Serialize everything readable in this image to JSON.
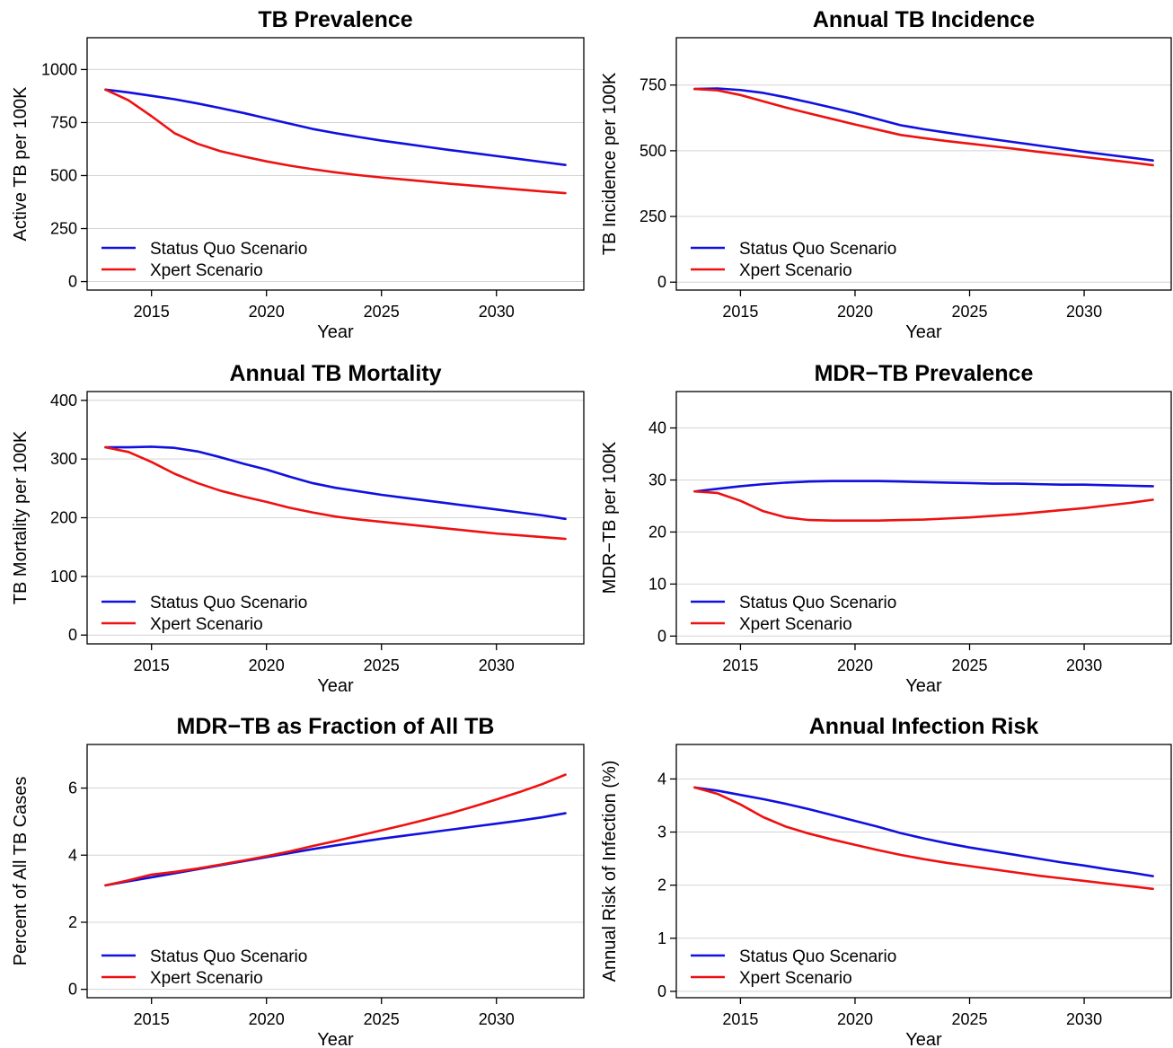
{
  "colors": {
    "status_quo": "#1010e0",
    "xpert": "#ee1111"
  },
  "chart_data": [
    {
      "type": "line",
      "title": "TB Prevalence",
      "xlabel": "Year",
      "ylabel": "Active TB per 100K",
      "xlim": [
        2012.2,
        2033.8
      ],
      "ylim": [
        -40,
        1150
      ],
      "xticks": [
        2015,
        2020,
        2025,
        2030
      ],
      "yticks": [
        0,
        250,
        500,
        750,
        1000
      ],
      "grid": "horizontal",
      "legend": "bottom-left",
      "series": [
        {
          "name": "Status Quo Scenario",
          "color": "#1010e0",
          "x": [
            2013,
            2014,
            2015,
            2016,
            2017,
            2018,
            2019,
            2020,
            2021,
            2022,
            2023,
            2024,
            2025,
            2026,
            2027,
            2028,
            2029,
            2030,
            2031,
            2032,
            2033
          ],
          "y": [
            905,
            892,
            876,
            860,
            840,
            818,
            795,
            770,
            745,
            720,
            700,
            682,
            665,
            650,
            635,
            620,
            606,
            592,
            578,
            564,
            550
          ]
        },
        {
          "name": "Xpert Scenario",
          "color": "#ee1111",
          "x": [
            2013,
            2014,
            2015,
            2016,
            2017,
            2018,
            2019,
            2020,
            2021,
            2022,
            2023,
            2024,
            2025,
            2026,
            2027,
            2028,
            2029,
            2030,
            2031,
            2032,
            2033
          ],
          "y": [
            905,
            855,
            780,
            700,
            650,
            615,
            590,
            567,
            547,
            530,
            515,
            502,
            491,
            481,
            471,
            461,
            452,
            443,
            434,
            425,
            417
          ]
        }
      ]
    },
    {
      "type": "line",
      "title": "Annual TB Incidence",
      "xlabel": "Year",
      "ylabel": "TB Incidence per 100K",
      "xlim": [
        2012.2,
        2033.8
      ],
      "ylim": [
        -30,
        930
      ],
      "xticks": [
        2015,
        2020,
        2025,
        2030
      ],
      "yticks": [
        0,
        250,
        500,
        750
      ],
      "grid": "horizontal",
      "legend": "bottom-left",
      "series": [
        {
          "name": "Status Quo Scenario",
          "color": "#1010e0",
          "x": [
            2013,
            2014,
            2015,
            2016,
            2017,
            2018,
            2019,
            2020,
            2021,
            2022,
            2023,
            2024,
            2025,
            2026,
            2027,
            2028,
            2029,
            2030,
            2031,
            2032,
            2033
          ],
          "y": [
            735,
            737,
            731,
            720,
            703,
            684,
            664,
            643,
            620,
            597,
            582,
            569,
            556,
            544,
            532,
            520,
            508,
            496,
            485,
            474,
            463
          ]
        },
        {
          "name": "Xpert Scenario",
          "color": "#ee1111",
          "x": [
            2013,
            2014,
            2015,
            2016,
            2017,
            2018,
            2019,
            2020,
            2021,
            2022,
            2023,
            2024,
            2025,
            2026,
            2027,
            2028,
            2029,
            2030,
            2031,
            2032,
            2033
          ],
          "y": [
            735,
            730,
            712,
            688,
            664,
            642,
            621,
            600,
            580,
            560,
            548,
            537,
            527,
            517,
            507,
            496,
            486,
            476,
            466,
            456,
            445
          ]
        }
      ]
    },
    {
      "type": "line",
      "title": "Annual TB Mortality",
      "xlabel": "Year",
      "ylabel": "TB Mortality per 100K",
      "xlim": [
        2012.2,
        2033.8
      ],
      "ylim": [
        -15,
        415
      ],
      "xticks": [
        2015,
        2020,
        2025,
        2030
      ],
      "yticks": [
        0,
        100,
        200,
        300,
        400
      ],
      "grid": "horizontal",
      "legend": "bottom-left",
      "series": [
        {
          "name": "Status Quo Scenario",
          "color": "#1010e0",
          "x": [
            2013,
            2014,
            2015,
            2016,
            2017,
            2018,
            2019,
            2020,
            2021,
            2022,
            2023,
            2024,
            2025,
            2026,
            2027,
            2028,
            2029,
            2030,
            2031,
            2032,
            2033
          ],
          "y": [
            320,
            320,
            321,
            319,
            313,
            303,
            292,
            282,
            270,
            259,
            251,
            245,
            239,
            234,
            229,
            224,
            219,
            214,
            209,
            204,
            198
          ]
        },
        {
          "name": "Xpert Scenario",
          "color": "#ee1111",
          "x": [
            2013,
            2014,
            2015,
            2016,
            2017,
            2018,
            2019,
            2020,
            2021,
            2022,
            2023,
            2024,
            2025,
            2026,
            2027,
            2028,
            2029,
            2030,
            2031,
            2032,
            2033
          ],
          "y": [
            320,
            312,
            295,
            275,
            259,
            246,
            236,
            227,
            217,
            209,
            202,
            197,
            193,
            189,
            185,
            181,
            177,
            173,
            170,
            167,
            164
          ]
        }
      ]
    },
    {
      "type": "line",
      "title": "MDR−TB Prevalence",
      "xlabel": "Year",
      "ylabel": "MDR−TB per 100K",
      "xlim": [
        2012.2,
        2033.8
      ],
      "ylim": [
        -1.5,
        47
      ],
      "xticks": [
        2015,
        2020,
        2025,
        2030
      ],
      "yticks": [
        0,
        10,
        20,
        30,
        40
      ],
      "grid": "horizontal",
      "legend": "bottom-left",
      "series": [
        {
          "name": "Status Quo Scenario",
          "color": "#1010e0",
          "x": [
            2013,
            2014,
            2015,
            2016,
            2017,
            2018,
            2019,
            2020,
            2021,
            2022,
            2023,
            2024,
            2025,
            2026,
            2027,
            2028,
            2029,
            2030,
            2031,
            2032,
            2033
          ],
          "y": [
            27.8,
            28.3,
            28.8,
            29.2,
            29.5,
            29.7,
            29.8,
            29.8,
            29.8,
            29.7,
            29.6,
            29.5,
            29.4,
            29.3,
            29.3,
            29.2,
            29.1,
            29.1,
            29.0,
            28.9,
            28.8
          ]
        },
        {
          "name": "Xpert Scenario",
          "color": "#ee1111",
          "x": [
            2013,
            2014,
            2015,
            2016,
            2017,
            2018,
            2019,
            2020,
            2021,
            2022,
            2023,
            2024,
            2025,
            2026,
            2027,
            2028,
            2029,
            2030,
            2031,
            2032,
            2033
          ],
          "y": [
            27.8,
            27.5,
            26.0,
            24.0,
            22.8,
            22.3,
            22.2,
            22.2,
            22.2,
            22.3,
            22.4,
            22.6,
            22.8,
            23.1,
            23.4,
            23.8,
            24.2,
            24.6,
            25.1,
            25.6,
            26.2
          ]
        }
      ]
    },
    {
      "type": "line",
      "title": "MDR−TB as Fraction of All TB",
      "xlabel": "Year",
      "ylabel": "Percent of All TB Cases",
      "xlim": [
        2012.2,
        2033.8
      ],
      "ylim": [
        -0.25,
        7.3
      ],
      "xticks": [
        2015,
        2020,
        2025,
        2030
      ],
      "yticks": [
        0,
        2,
        4,
        6
      ],
      "grid": "horizontal",
      "legend": "bottom-left",
      "series": [
        {
          "name": "Status Quo Scenario",
          "color": "#1010e0",
          "x": [
            2013,
            2014,
            2015,
            2016,
            2017,
            2018,
            2019,
            2020,
            2021,
            2022,
            2023,
            2024,
            2025,
            2026,
            2027,
            2028,
            2029,
            2030,
            2031,
            2032,
            2033
          ],
          "y": [
            3.1,
            3.22,
            3.34,
            3.46,
            3.58,
            3.7,
            3.82,
            3.94,
            4.06,
            4.18,
            4.29,
            4.39,
            4.49,
            4.58,
            4.67,
            4.76,
            4.85,
            4.94,
            5.03,
            5.13,
            5.25
          ]
        },
        {
          "name": "Xpert Scenario",
          "color": "#ee1111",
          "x": [
            2013,
            2014,
            2015,
            2016,
            2017,
            2018,
            2019,
            2020,
            2021,
            2022,
            2023,
            2024,
            2025,
            2026,
            2027,
            2028,
            2029,
            2030,
            2031,
            2032,
            2033
          ],
          "y": [
            3.1,
            3.25,
            3.42,
            3.5,
            3.6,
            3.72,
            3.84,
            3.97,
            4.11,
            4.27,
            4.42,
            4.58,
            4.74,
            4.9,
            5.07,
            5.25,
            5.45,
            5.66,
            5.88,
            6.12,
            6.4
          ]
        }
      ]
    },
    {
      "type": "line",
      "title": "Annual Infection Risk",
      "xlabel": "Year",
      "ylabel": "Annual Risk of Infection (%)",
      "xlim": [
        2012.2,
        2033.8
      ],
      "ylim": [
        -0.12,
        4.65
      ],
      "xticks": [
        2015,
        2020,
        2025,
        2030
      ],
      "yticks": [
        0,
        1,
        2,
        3,
        4
      ],
      "grid": "horizontal",
      "legend": "bottom-left",
      "series": [
        {
          "name": "Status Quo Scenario",
          "color": "#1010e0",
          "x": [
            2013,
            2014,
            2015,
            2016,
            2017,
            2018,
            2019,
            2020,
            2021,
            2022,
            2023,
            2024,
            2025,
            2026,
            2027,
            2028,
            2029,
            2030,
            2031,
            2032,
            2033
          ],
          "y": [
            3.84,
            3.78,
            3.7,
            3.62,
            3.53,
            3.43,
            3.32,
            3.21,
            3.1,
            2.98,
            2.88,
            2.79,
            2.71,
            2.64,
            2.57,
            2.5,
            2.43,
            2.37,
            2.3,
            2.24,
            2.17
          ]
        },
        {
          "name": "Xpert Scenario",
          "color": "#ee1111",
          "x": [
            2013,
            2014,
            2015,
            2016,
            2017,
            2018,
            2019,
            2020,
            2021,
            2022,
            2023,
            2024,
            2025,
            2026,
            2027,
            2028,
            2029,
            2030,
            2031,
            2032,
            2033
          ],
          "y": [
            3.84,
            3.72,
            3.52,
            3.28,
            3.1,
            2.97,
            2.86,
            2.76,
            2.66,
            2.57,
            2.49,
            2.42,
            2.36,
            2.3,
            2.24,
            2.18,
            2.13,
            2.08,
            2.03,
            1.98,
            1.93
          ]
        }
      ]
    }
  ]
}
